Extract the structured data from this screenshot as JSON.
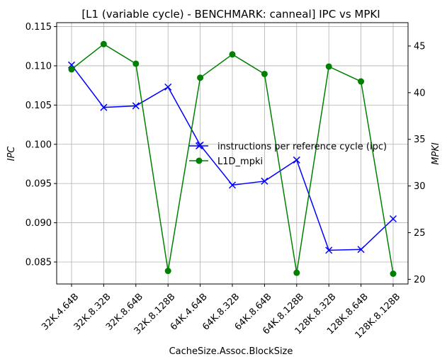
{
  "chart_data": {
    "type": "line",
    "title": "[L1 (variable cycle) - BENCHMARK: canneal]  IPC vs MPKI",
    "xlabel": "CacheSize.Assoc.BlockSize",
    "ylabel_left": "IPC",
    "ylabel_right": "MPKI",
    "categories": [
      "32K.4.64B",
      "32K.8.32B",
      "32K.8.64B",
      "32K.8.128B",
      "64K.4.64B",
      "64K.8.32B",
      "64K.8.64B",
      "64K.8.128B",
      "128K.8.32B",
      "128K.8.64B",
      "128K.8.128B"
    ],
    "ylim_left": [
      0.0822,
      0.1155
    ],
    "ylim_right": [
      19.5,
      47.5
    ],
    "yticks_left": [
      0.085,
      0.09,
      0.095,
      0.1,
      0.105,
      0.11,
      0.115
    ],
    "ytick_labels_left": [
      "0.085",
      "0.090",
      "0.095",
      "0.100",
      "0.105",
      "0.110",
      "0.115"
    ],
    "yticks_right": [
      20,
      25,
      30,
      35,
      40,
      45
    ],
    "ytick_labels_right": [
      "20",
      "25",
      "30",
      "35",
      "40",
      "45"
    ],
    "grid": true,
    "legend_position": "center-right",
    "series": [
      {
        "name": "instructions per reference cycle (ipc)",
        "axis": "left",
        "color": "#0000ff",
        "marker": "x",
        "values": [
          0.1101,
          0.1047,
          0.1049,
          0.1073,
          0.0999,
          0.0948,
          0.0953,
          0.098,
          0.0865,
          0.0866,
          0.0905
        ]
      },
      {
        "name": "L1D_mpki",
        "axis": "right",
        "color": "#008000",
        "marker": "o",
        "values": [
          42.5,
          45.2,
          43.1,
          20.9,
          41.6,
          44.1,
          42.0,
          20.7,
          42.8,
          41.2,
          20.6
        ]
      }
    ]
  }
}
